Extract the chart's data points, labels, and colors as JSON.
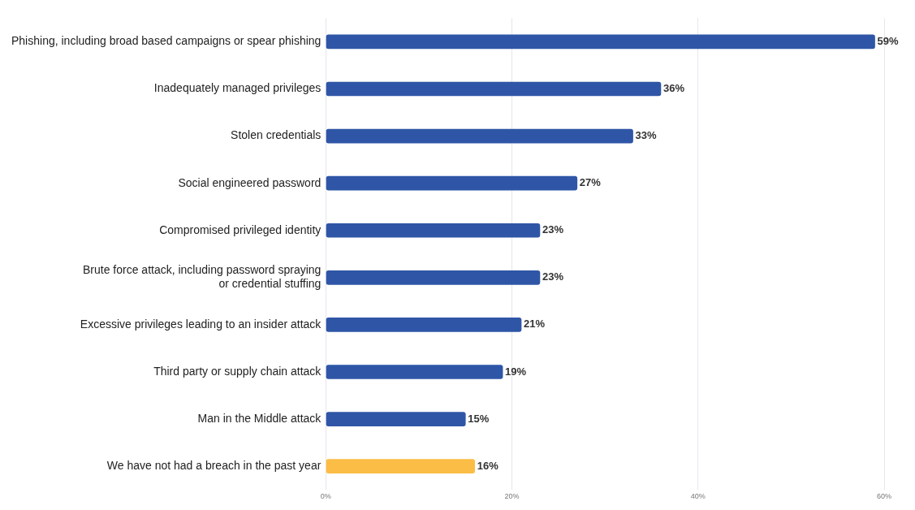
{
  "chart_data": {
    "type": "bar",
    "orientation": "horizontal",
    "categories": [
      "Phishing, including broad based campaigns or spear phishing",
      "Inadequately managed privileges",
      "Stolen credentials",
      "Social engineered password",
      "Compromised privileged identity",
      "Brute force attack, including password spraying\nor credential stuffing",
      "Excessive privileges leading to an insider attack",
      "Third party or supply chain attack",
      "Man in the Middle attack",
      "We have not had a breach in the past year"
    ],
    "values": [
      59,
      36,
      33,
      27,
      23,
      23,
      21,
      19,
      15,
      16
    ],
    "colors": [
      "#2f56a6",
      "#2f56a6",
      "#2f56a6",
      "#2f56a6",
      "#2f56a6",
      "#2f56a6",
      "#2f56a6",
      "#2f56a6",
      "#2f56a6",
      "#fbbd45"
    ],
    "xlim": [
      0,
      60
    ],
    "xticks": [
      {
        "value": 0,
        "label": "0%"
      },
      {
        "value": 20,
        "label": "20%"
      },
      {
        "value": 40,
        "label": "40%"
      },
      {
        "value": 60,
        "label": "60%"
      }
    ],
    "value_labels": [
      "59%",
      "36%",
      "33%",
      "27%",
      "23%",
      "23%",
      "21%",
      "19%",
      "15%",
      "16%"
    ],
    "grid": "x",
    "legend": false
  }
}
